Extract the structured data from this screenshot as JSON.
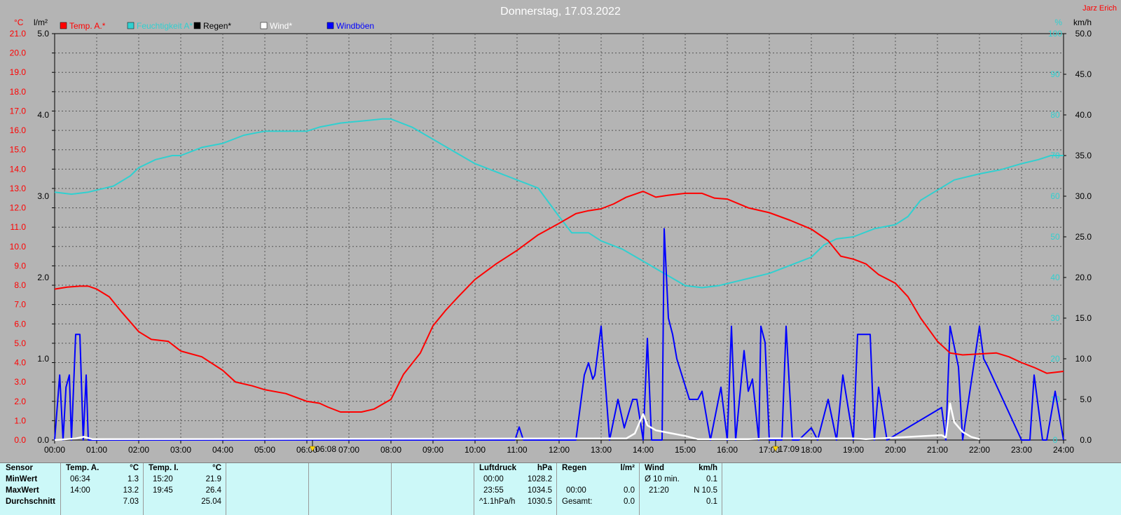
{
  "title": "Donnerstag, 17.03.2022",
  "author": "Jarz Erich",
  "colors": {
    "background": "#b4b4b4",
    "temp": "#ff0000",
    "humidity": "#30d0d0",
    "rain": "#000000",
    "wind": "#ffffff",
    "gusts": "#0000ff",
    "stats_bg": "#ccf8f8"
  },
  "legend": [
    {
      "label": "Temp. A.*",
      "color": "#ff0000"
    },
    {
      "label": "Feuchtigkeit A*",
      "color": "#30d0d0"
    },
    {
      "label": "Regen*",
      "color": "#000000"
    },
    {
      "label": "Wind*",
      "color": "#ffffff"
    },
    {
      "label": "Windböen",
      "color": "#0000ff"
    }
  ],
  "axes": {
    "temp_unit": "°C",
    "rain_unit": "l/m²",
    "hum_unit": "%",
    "wind_unit": "km/h",
    "temp_ticks": [
      "0.0",
      "1.0",
      "2.0",
      "3.0",
      "4.0",
      "5.0",
      "6.0",
      "7.0",
      "8.0",
      "9.0",
      "10.0",
      "11.0",
      "12.0",
      "13.0",
      "14.0",
      "15.0",
      "16.0",
      "17.0",
      "18.0",
      "19.0",
      "20.0",
      "21.0"
    ],
    "rain_ticks": [
      "0.0",
      "1.0",
      "2.0",
      "3.0",
      "4.0",
      "5.0"
    ],
    "hum_ticks": [
      "0",
      "10",
      "20",
      "30",
      "40",
      "50",
      "60",
      "70",
      "80",
      "90",
      "100"
    ],
    "wind_ticks": [
      "0.0",
      "5.0",
      "10.0",
      "15.0",
      "20.0",
      "25.0",
      "30.0",
      "35.0",
      "40.0",
      "45.0",
      "50.0"
    ],
    "time_ticks": [
      "00:00",
      "01:00",
      "02:00",
      "03:00",
      "04:00",
      "05:00",
      "06:00",
      "07:00",
      "08:00",
      "09:00",
      "10:00",
      "11:00",
      "12:00",
      "13:00",
      "14:00",
      "15:00",
      "16:00",
      "17:00",
      "18:00",
      "19:00",
      "20:00",
      "21:00",
      "22:00",
      "23:00",
      "24:00"
    ],
    "sunrise": "06:08",
    "sunset": "17:09"
  },
  "chart_data": {
    "type": "line",
    "title": "Donnerstag, 17.03.2022",
    "x_unit": "hours",
    "temp_range": [
      0,
      21
    ],
    "hum_range": [
      0,
      100
    ],
    "wind_range": [
      0,
      50
    ],
    "rain_range": [
      0,
      5
    ],
    "series": [
      {
        "name": "Temp. A.*",
        "axis": "temp",
        "x": [
          0,
          0.3,
          0.6,
          0.8,
          1.0,
          1.3,
          1.6,
          2.0,
          2.3,
          2.7,
          3.0,
          3.5,
          4.0,
          4.3,
          4.7,
          5.0,
          5.5,
          6.0,
          6.3,
          6.5,
          6.8,
          7.0,
          7.3,
          7.6,
          8.0,
          8.3,
          8.7,
          9.0,
          9.3,
          9.6,
          10.0,
          10.5,
          11.0,
          11.5,
          12.0,
          12.4,
          12.7,
          13.0,
          13.3,
          13.6,
          14.0,
          14.3,
          14.6,
          15.0,
          15.4,
          15.7,
          16.0,
          16.5,
          17.0,
          17.5,
          18.0,
          18.4,
          18.7,
          19.0,
          19.3,
          19.6,
          20.0,
          20.3,
          20.6,
          21.0,
          21.3,
          21.6,
          22.0,
          22.4,
          22.7,
          23.0,
          23.3,
          23.6,
          24.0
        ],
        "values": [
          7.8,
          7.9,
          7.95,
          7.95,
          7.8,
          7.4,
          6.6,
          5.6,
          5.2,
          5.1,
          4.6,
          4.3,
          3.6,
          3.0,
          2.8,
          2.6,
          2.4,
          2.0,
          1.9,
          1.7,
          1.45,
          1.45,
          1.45,
          1.6,
          2.1,
          3.4,
          4.5,
          5.9,
          6.7,
          7.4,
          8.3,
          9.1,
          9.8,
          10.6,
          11.2,
          11.7,
          11.85,
          11.95,
          12.2,
          12.55,
          12.85,
          12.55,
          12.65,
          12.75,
          12.75,
          12.5,
          12.45,
          12.0,
          11.75,
          11.35,
          10.9,
          10.3,
          9.5,
          9.35,
          9.1,
          8.55,
          8.1,
          7.4,
          6.3,
          5.1,
          4.5,
          4.4,
          4.45,
          4.5,
          4.3,
          4.0,
          3.75,
          3.45,
          3.55
        ]
      },
      {
        "name": "Feuchtigkeit A*",
        "axis": "hum",
        "x": [
          0,
          0.4,
          0.8,
          1.0,
          1.4,
          1.8,
          2.0,
          2.4,
          2.8,
          3.0,
          3.5,
          4.0,
          4.5,
          5.0,
          5.5,
          6.0,
          6.3,
          6.8,
          7.3,
          7.8,
          8.0,
          8.5,
          9.0,
          9.5,
          10.0,
          10.5,
          11.0,
          11.5,
          12.0,
          12.3,
          12.7,
          13.0,
          13.5,
          14.0,
          14.5,
          15.0,
          15.4,
          15.8,
          16.2,
          16.6,
          17.0,
          17.5,
          18.0,
          18.3,
          18.6,
          19.0,
          19.5,
          20.0,
          20.3,
          20.6,
          21.0,
          21.4,
          21.8,
          22.0,
          22.5,
          23.0,
          23.4,
          23.7,
          24.0
        ],
        "values": [
          61,
          60.5,
          61,
          61.5,
          62.5,
          65,
          67,
          69,
          70,
          70,
          72,
          73,
          75,
          76,
          76,
          76,
          77,
          78,
          78.5,
          79,
          79,
          77,
          74,
          71,
          68,
          66,
          64,
          62,
          55,
          51,
          51,
          49,
          47,
          44,
          41,
          38,
          37.5,
          38,
          39,
          40,
          41,
          43,
          45,
          48,
          49.5,
          50,
          52,
          53,
          55,
          59,
          61.5,
          64,
          65,
          65.5,
          66.5,
          68,
          69,
          70,
          70
        ]
      },
      {
        "name": "Wind*",
        "axis": "wind",
        "x": [
          0,
          0.5,
          0.7,
          0.9,
          13.6,
          13.8,
          14.0,
          14.1,
          14.3,
          14.6,
          15.0,
          15.3,
          16.5,
          17.0,
          19.0,
          19.3,
          21.1,
          21.2,
          21.3,
          21.4,
          21.6,
          21.8,
          22.0
        ],
        "values": [
          0,
          0.2,
          0.4,
          0.1,
          0.2,
          0.8,
          3.2,
          1.8,
          1.2,
          0.9,
          0.5,
          0.1,
          0.1,
          0.2,
          0.2,
          0.1,
          0.6,
          0.3,
          4.5,
          2.2,
          1.0,
          0.4,
          0.1
        ]
      },
      {
        "name": "Windböen",
        "axis": "wind",
        "x": [
          0,
          0.12,
          0.2,
          0.27,
          0.35,
          0.4,
          0.5,
          0.6,
          0.68,
          0.75,
          0.8,
          0.9,
          1.0,
          10.95,
          11.05,
          11.15,
          12.4,
          12.6,
          12.7,
          12.8,
          12.85,
          13.0,
          13.2,
          13.4,
          13.55,
          13.75,
          13.85,
          14.0,
          14.1,
          14.2,
          14.45,
          14.5,
          14.6,
          14.7,
          14.8,
          15.1,
          15.3,
          15.4,
          15.6,
          15.85,
          16.0,
          16.1,
          16.2,
          16.4,
          16.5,
          16.6,
          16.75,
          16.8,
          16.9,
          17.0,
          17.3,
          17.4,
          17.55,
          17.7,
          18.0,
          18.15,
          18.3,
          18.4,
          18.6,
          18.75,
          19.0,
          19.1,
          19.4,
          19.5,
          19.6,
          19.8,
          21.1,
          21.2,
          21.3,
          21.4,
          21.5,
          21.6,
          22.0,
          22.1,
          22.2,
          23.0,
          23.2,
          23.3,
          23.5,
          23.6,
          23.8,
          24.0
        ],
        "values": [
          0,
          8,
          0,
          6.5,
          8,
          0,
          13,
          13,
          0,
          8,
          0,
          0,
          0,
          0,
          1.6,
          0,
          0,
          8,
          9.5,
          7.5,
          8,
          14,
          0,
          5,
          1.5,
          5,
          5,
          0,
          12.5,
          0,
          0,
          26,
          15,
          13,
          10,
          5,
          5,
          6,
          0,
          6.5,
          0,
          14,
          0,
          11,
          6,
          7.5,
          0,
          14,
          12,
          0,
          0,
          14,
          0,
          0,
          1.5,
          0,
          3,
          5,
          0,
          8,
          0,
          13,
          13,
          0,
          6.5,
          0,
          4,
          0,
          14,
          11.5,
          9,
          0,
          14,
          10,
          9,
          0,
          0,
          8,
          0,
          0,
          6,
          0
        ]
      },
      {
        "name": "Regen*",
        "axis": "rain",
        "x": [
          0,
          24
        ],
        "values": [
          0,
          0
        ]
      }
    ]
  },
  "stats": {
    "sensor_header": "Sensor",
    "row_labels": [
      "MinWert",
      "MaxWert",
      "Durchschnitt"
    ],
    "temp_a": {
      "title": "Temp. A.",
      "unit": "°C",
      "min_time": "06:34",
      "min": "1.3",
      "max_time": "14:00",
      "max": "13.2",
      "avg": "7.03"
    },
    "temp_i": {
      "title": "Temp. I.",
      "unit": "°C",
      "min_time": "15:20",
      "min": "21.9",
      "max_time": "19:45",
      "max": "26.4",
      "avg": "25.04"
    },
    "pressure": {
      "title": "Luftdruck",
      "unit": "hPa",
      "min_time": "00:00",
      "min": "1028.2",
      "max_time": "23:55",
      "max": "1034.5",
      "avg_label": "^1.1hPa/h",
      "avg": "1030.5"
    },
    "rain": {
      "title": "Regen",
      "unit": "l/m²",
      "max_time": "00:00",
      "max": "0.0",
      "total_label": "Gesamt:",
      "total": "0.0"
    },
    "wind": {
      "title": "Wind",
      "unit": "km/h",
      "min_label": "Ø 10 min.",
      "min": "0.1",
      "max_time": "21:20",
      "max": "N 10.5",
      "avg": "0.1"
    }
  }
}
